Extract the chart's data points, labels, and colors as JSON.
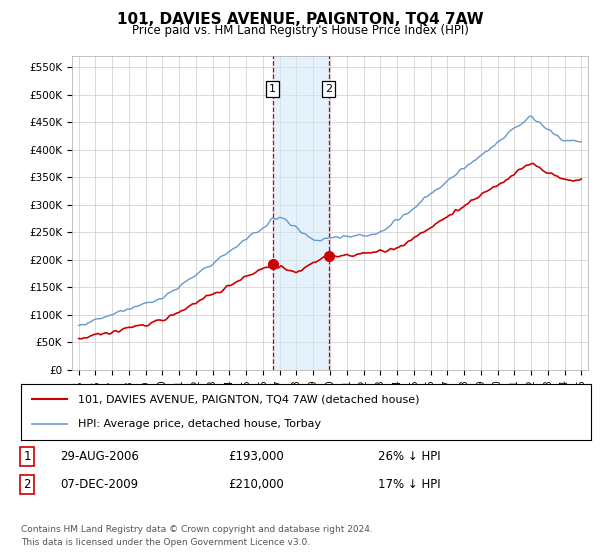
{
  "title": "101, DAVIES AVENUE, PAIGNTON, TQ4 7AW",
  "subtitle": "Price paid vs. HM Land Registry's House Price Index (HPI)",
  "ylim": [
    0,
    570000
  ],
  "yticks": [
    0,
    50000,
    100000,
    150000,
    200000,
    250000,
    300000,
    350000,
    400000,
    450000,
    500000,
    550000
  ],
  "ytick_labels": [
    "£0",
    "£50K",
    "£100K",
    "£150K",
    "£200K",
    "£250K",
    "£300K",
    "£350K",
    "£400K",
    "£450K",
    "£500K",
    "£550K"
  ],
  "sale1_date": "29-AUG-2006",
  "sale1_price": 193000,
  "sale1_pct": "26% ↓ HPI",
  "sale2_date": "07-DEC-2009",
  "sale2_price": 210000,
  "sale2_pct": "17% ↓ HPI",
  "legend1": "101, DAVIES AVENUE, PAIGNTON, TQ4 7AW (detached house)",
  "legend2": "HPI: Average price, detached house, Torbay",
  "footer1": "Contains HM Land Registry data © Crown copyright and database right 2024.",
  "footer2": "This data is licensed under the Open Government Licence v3.0.",
  "red_color": "#cc0000",
  "blue_color": "#6699cc",
  "shade_color": "#d0e8f8",
  "shade_alpha": 0.55,
  "vline_color": "#cc0000",
  "background_color": "#ffffff",
  "grid_color": "#cccccc",
  "sale1_year_float": 2006.583,
  "sale2_year_float": 2009.917
}
